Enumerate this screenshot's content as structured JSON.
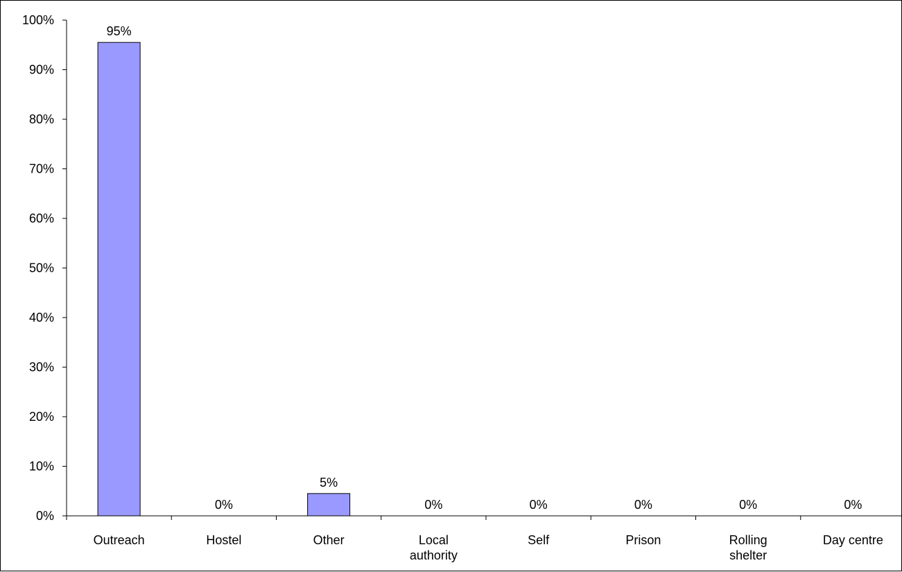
{
  "chart_data": {
    "type": "bar",
    "categories": [
      "Outreach",
      "Hostel",
      "Other",
      "Local authority",
      "Self",
      "Prison",
      "Rolling shelter",
      "Day centre"
    ],
    "category_lines": [
      [
        "Outreach"
      ],
      [
        "Hostel"
      ],
      [
        "Other"
      ],
      [
        "Local",
        "authority"
      ],
      [
        "Self"
      ],
      [
        "Prison"
      ],
      [
        "Rolling",
        "shelter"
      ],
      [
        "Day centre"
      ]
    ],
    "values": [
      95.5,
      0,
      4.5,
      0,
      0,
      0,
      0,
      0
    ],
    "data_labels": [
      "95%",
      "0%",
      "5%",
      "0%",
      "0%",
      "0%",
      "0%",
      "0%"
    ],
    "ylim": [
      0,
      100
    ],
    "y_ticks": [
      0,
      10,
      20,
      30,
      40,
      50,
      60,
      70,
      80,
      90,
      100
    ],
    "y_tick_labels": [
      "0%",
      "10%",
      "20%",
      "30%",
      "40%",
      "50%",
      "60%",
      "70%",
      "80%",
      "90%",
      "100%"
    ],
    "title": "",
    "xlabel": "",
    "ylabel": "",
    "grid": false,
    "legend": "none",
    "bar_color": "#9999ff",
    "bar_edge_color": "#000000"
  }
}
